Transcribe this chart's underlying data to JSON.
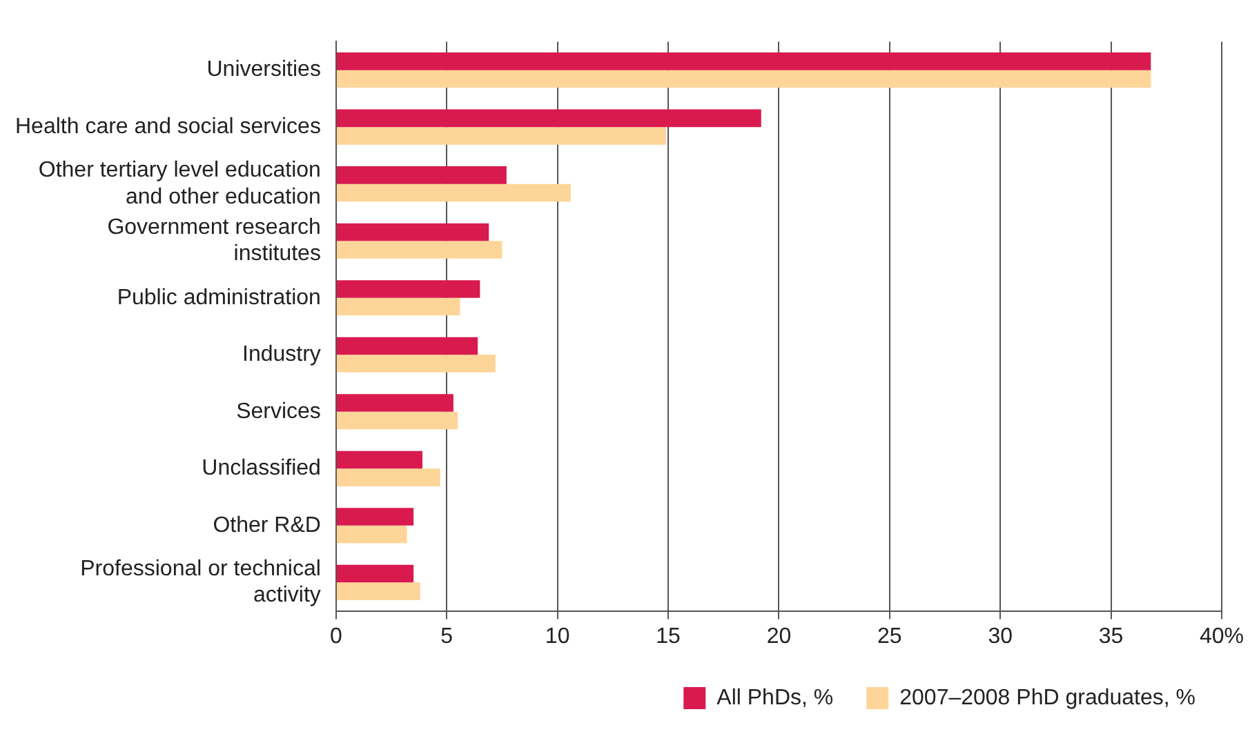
{
  "chart_data": {
    "type": "bar",
    "orientation": "horizontal",
    "categories": [
      "Universities",
      "Health care and social services",
      "Other tertiary level education\nand other education",
      "Government research\ninstitutes",
      "Public administration",
      "Industry",
      "Services",
      "Unclassified",
      "Other R&D",
      "Professional or technical\nactivity"
    ],
    "series": [
      {
        "name": "All PhDs, %",
        "color": "#d91a4f",
        "values": [
          36.8,
          19.2,
          7.7,
          6.9,
          6.5,
          6.4,
          5.3,
          3.9,
          3.5,
          3.5
        ]
      },
      {
        "name": "2007–2008 PhD graduates, %",
        "color": "#fdd598",
        "values": [
          36.8,
          14.9,
          10.6,
          7.5,
          5.6,
          7.2,
          5.5,
          4.7,
          3.2,
          3.8
        ]
      }
    ],
    "xlim": [
      0,
      40
    ],
    "xticks": [
      0,
      5,
      10,
      15,
      20,
      25,
      30,
      35,
      {
        "value": 40,
        "label": "40%"
      }
    ],
    "grid": "x",
    "legend": "bottom"
  }
}
